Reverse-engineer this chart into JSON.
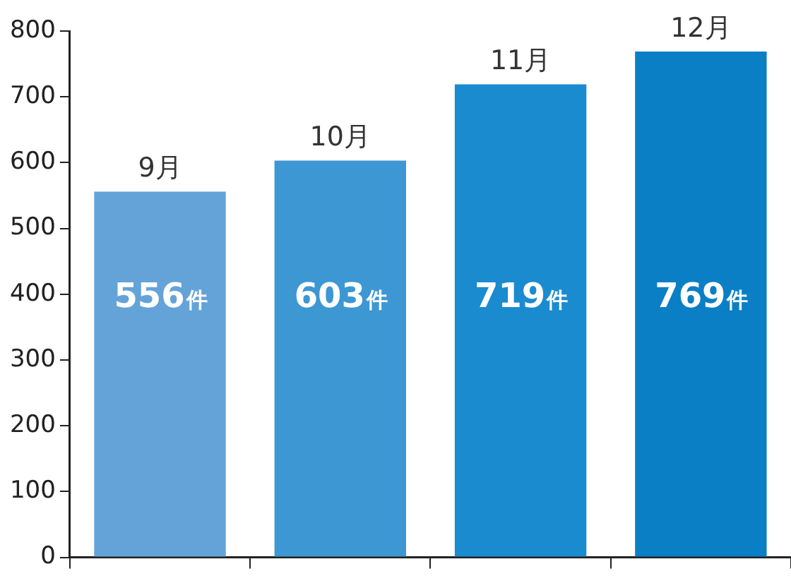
{
  "chart_data": {
    "type": "bar",
    "categories": [
      "9月",
      "10月",
      "11月",
      "12月"
    ],
    "values": [
      556,
      603,
      719,
      769
    ],
    "colors": [
      "#64a3d8",
      "#3d97d3",
      "#1a8bcf",
      "#0a7fc5"
    ],
    "value_labels": [
      "556件",
      "603件",
      "719件",
      "769件"
    ],
    "ylim": [
      0,
      800
    ],
    "yticks": [
      0,
      100,
      200,
      300,
      400,
      500,
      600,
      700,
      800
    ],
    "grid": false,
    "legend": false,
    "tick_labels": "y"
  }
}
